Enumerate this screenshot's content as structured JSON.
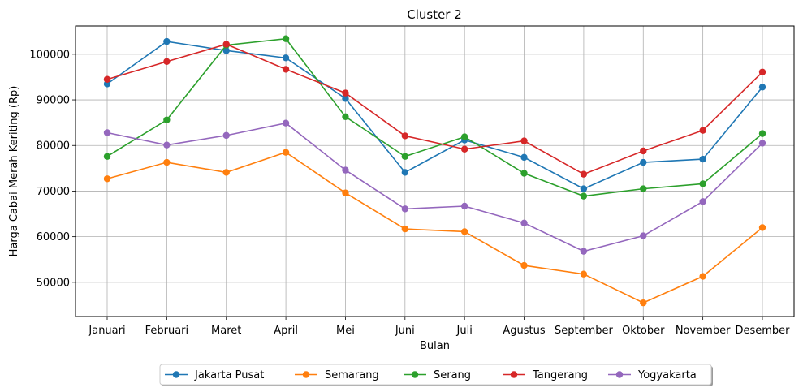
{
  "chart_data": {
    "type": "line",
    "title": "Cluster 2",
    "xlabel": "Bulan",
    "ylabel": "Harga Cabai Merah Keriting (Rp)",
    "categories": [
      "Januari",
      "Februari",
      "Maret",
      "April",
      "Mei",
      "Juni",
      "Juli",
      "Agustus",
      "September",
      "Oktober",
      "November",
      "Desember"
    ],
    "ylim": [
      42500,
      106200
    ],
    "yticks": [
      50000,
      60000,
      70000,
      80000,
      90000,
      100000
    ],
    "ytick_labels": [
      "50000",
      "60000",
      "70000",
      "80000",
      "90000",
      "100000"
    ],
    "grid": true,
    "legend_position": "bottom-center",
    "series": [
      {
        "name": "Jakarta Pusat",
        "color": "#1f77b4",
        "values": [
          93500,
          102800,
          100800,
          99200,
          90300,
          74100,
          81200,
          77400,
          70500,
          76300,
          77000,
          92800
        ]
      },
      {
        "name": "Semarang",
        "color": "#ff7f0e",
        "values": [
          72700,
          76300,
          74100,
          78500,
          69600,
          61700,
          61100,
          53700,
          51800,
          45500,
          51300,
          62000
        ]
      },
      {
        "name": "Serang",
        "color": "#2ca02c",
        "values": [
          77600,
          85600,
          102000,
          103400,
          86300,
          77600,
          81900,
          73900,
          68900,
          70500,
          71600,
          82600
        ]
      },
      {
        "name": "Tangerang",
        "color": "#d62728",
        "values": [
          94500,
          98400,
          102200,
          96700,
          91500,
          82100,
          79200,
          81000,
          73700,
          78800,
          83300,
          96100
        ]
      },
      {
        "name": "Yogyakarta",
        "color": "#9467bd",
        "values": [
          82800,
          80100,
          82200,
          84900,
          74600,
          66100,
          66700,
          63000,
          56800,
          60200,
          67700,
          80500
        ]
      }
    ]
  }
}
